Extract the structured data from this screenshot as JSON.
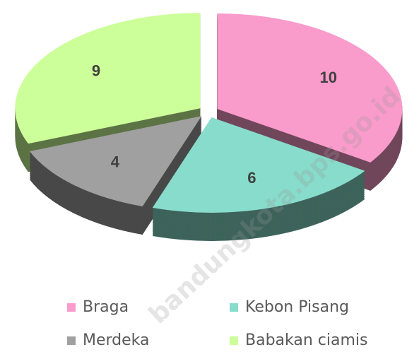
{
  "chart_data": {
    "type": "pie3d",
    "categories": [
      "Braga",
      "Kebon Pisang",
      "Merdeka",
      "Babakan ciamis"
    ],
    "values": [
      10,
      6,
      4,
      9
    ],
    "colors": [
      "#f99bcb",
      "#88dccb",
      "#a0a0a0",
      "#ccff99"
    ],
    "legend": "bottom",
    "watermark": "bandungkota.bps.go.id"
  }
}
